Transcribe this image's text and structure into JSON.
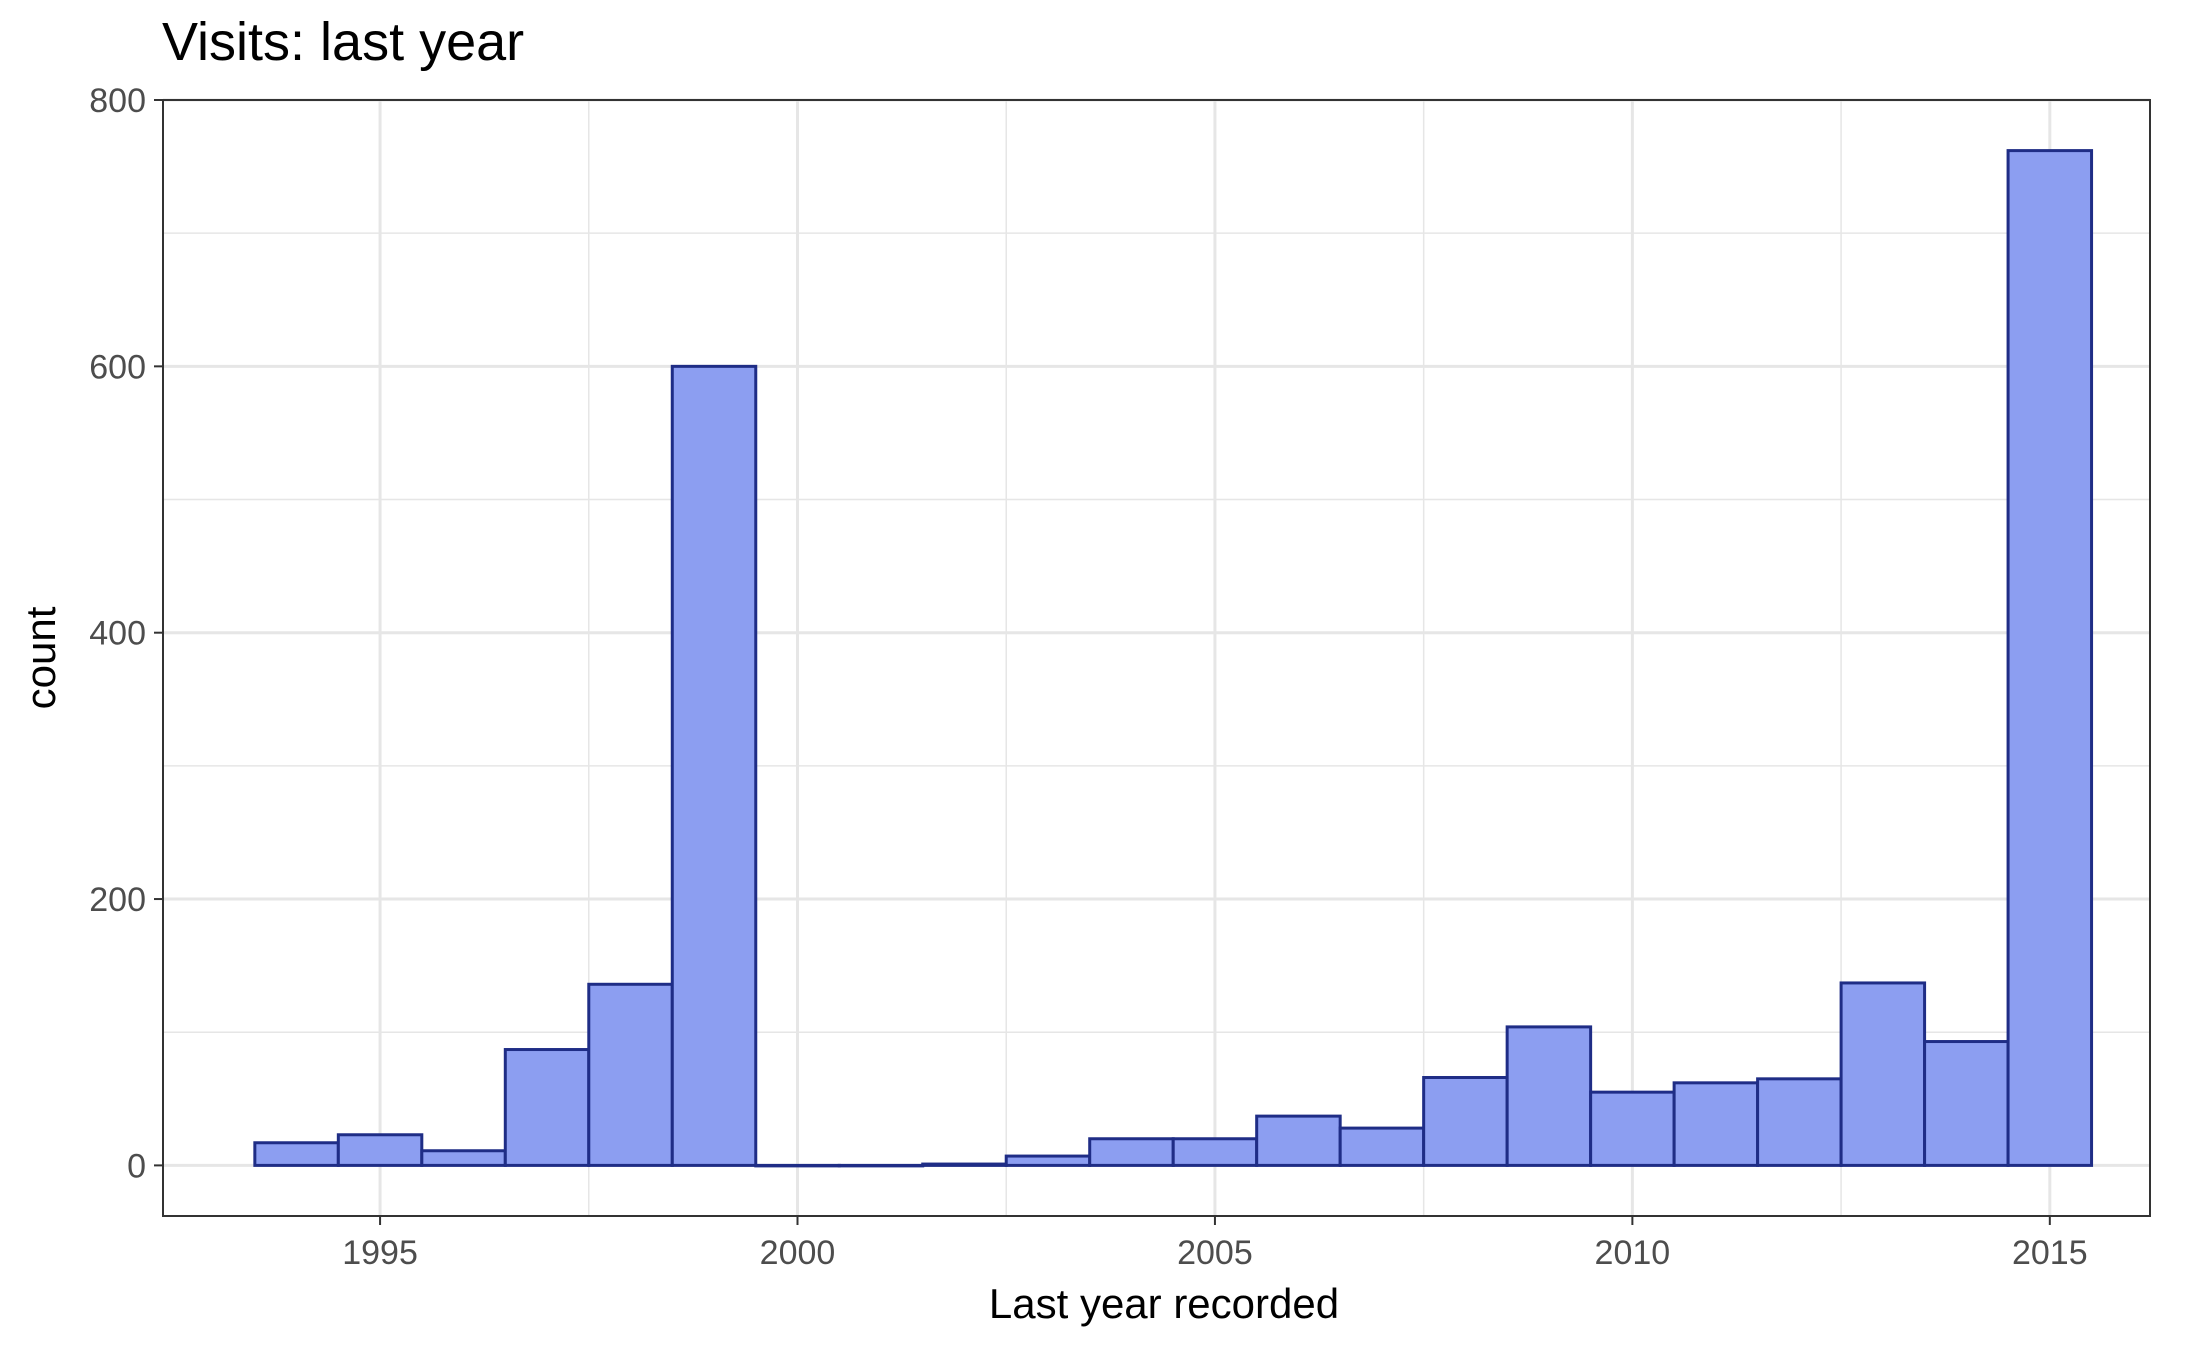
{
  "chart_data": {
    "type": "bar",
    "title": "Visits: last year",
    "xlabel": "Last year recorded",
    "ylabel": "count",
    "xlim": [
      1992.4,
      2016.2
    ],
    "ylim": [
      -38,
      800
    ],
    "x_ticks": [
      1995,
      2000,
      2005,
      2010,
      2015
    ],
    "x_tick_labels": [
      "1995",
      "2000",
      "2005",
      "2010",
      "2015"
    ],
    "y_ticks": [
      0,
      200,
      400,
      600,
      800
    ],
    "y_tick_labels": [
      "0",
      "200",
      "400",
      "600",
      "800"
    ],
    "grid": true,
    "legend": "none",
    "bin_width": 1,
    "categories": [
      1994,
      1995,
      1996,
      1997,
      1998,
      1999,
      2000,
      2001,
      2002,
      2003,
      2004,
      2005,
      2006,
      2007,
      2008,
      2009,
      2010,
      2011,
      2012,
      2013,
      2014,
      2015
    ],
    "values": [
      17,
      23,
      11,
      87,
      136,
      600,
      0,
      0,
      1,
      7,
      20,
      20,
      37,
      28,
      66,
      104,
      55,
      62,
      65,
      137,
      93,
      762
    ],
    "colors": {
      "fill": "#8C9EF1",
      "stroke": "#1F2D86",
      "grid": "#e6e6e6",
      "panel_border": "#333333"
    }
  }
}
